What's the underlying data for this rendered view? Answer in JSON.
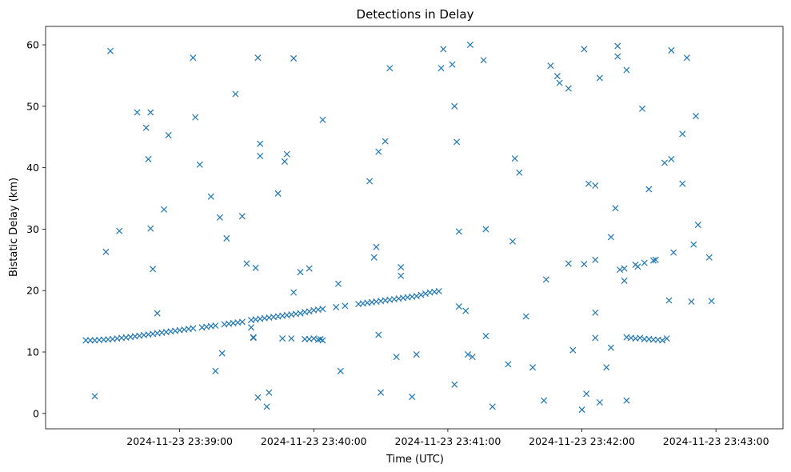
{
  "chart_data": {
    "type": "scatter",
    "title": "Detections in Delay",
    "xlabel": "Time (UTC)",
    "ylabel": "Bistatic Delay (km)",
    "marker": "x",
    "color": "#1f77b4",
    "grid": false,
    "legend": "none",
    "xlim": [
      "2024-11-23 23:38:00",
      "2024-11-23 23:43:30"
    ],
    "ylim": [
      -2.5,
      63
    ],
    "xticks": [
      "2024-11-23 23:39:00",
      "2024-11-23 23:40:00",
      "2024-11-23 23:41:00",
      "2024-11-23 23:42:00",
      "2024-11-23 23:43:00"
    ],
    "yticks": [
      0,
      10,
      20,
      30,
      40,
      50,
      60
    ],
    "x_unit": "seconds after 2024-11-23 23:38:00 UTC",
    "points": [
      [
        18,
        11.9
      ],
      [
        20,
        11.9
      ],
      [
        22,
        11.9
      ],
      [
        24,
        11.95
      ],
      [
        26,
        12.0
      ],
      [
        28,
        12.05
      ],
      [
        30,
        12.1
      ],
      [
        32,
        12.2
      ],
      [
        34,
        12.3
      ],
      [
        36,
        12.35
      ],
      [
        38,
        12.45
      ],
      [
        40,
        12.55
      ],
      [
        42,
        12.65
      ],
      [
        44,
        12.75
      ],
      [
        46,
        12.85
      ],
      [
        48,
        12.95
      ],
      [
        50,
        13.05
      ],
      [
        52,
        13.15
      ],
      [
        54,
        13.25
      ],
      [
        56,
        13.35
      ],
      [
        58,
        13.45
      ],
      [
        60,
        13.55
      ],
      [
        62,
        13.65
      ],
      [
        64,
        13.75
      ],
      [
        66,
        13.85
      ],
      [
        70,
        14.0
      ],
      [
        72,
        14.1
      ],
      [
        74,
        14.2
      ],
      [
        76,
        14.3
      ],
      [
        80,
        14.5
      ],
      [
        82,
        14.6
      ],
      [
        84,
        14.7
      ],
      [
        86,
        14.8
      ],
      [
        88,
        14.9
      ],
      [
        92,
        15.2
      ],
      [
        94,
        15.3
      ],
      [
        96,
        15.4
      ],
      [
        98,
        15.5
      ],
      [
        100,
        15.6
      ],
      [
        102,
        15.7
      ],
      [
        104,
        15.8
      ],
      [
        106,
        15.9
      ],
      [
        108,
        16.0
      ],
      [
        110,
        16.1
      ],
      [
        112,
        16.2
      ],
      [
        114,
        16.3
      ],
      [
        116,
        16.5
      ],
      [
        118,
        16.6
      ],
      [
        120,
        16.8
      ],
      [
        122,
        16.9
      ],
      [
        124,
        17.0
      ],
      [
        130,
        17.3
      ],
      [
        134,
        17.5
      ],
      [
        140,
        17.8
      ],
      [
        142,
        17.9
      ],
      [
        144,
        18.0
      ],
      [
        146,
        18.1
      ],
      [
        148,
        18.2
      ],
      [
        150,
        18.3
      ],
      [
        152,
        18.4
      ],
      [
        154,
        18.5
      ],
      [
        156,
        18.6
      ],
      [
        158,
        18.7
      ],
      [
        160,
        18.8
      ],
      [
        162,
        18.9
      ],
      [
        164,
        19.0
      ],
      [
        166,
        19.1
      ],
      [
        168,
        19.3
      ],
      [
        170,
        19.5
      ],
      [
        172,
        19.7
      ],
      [
        174,
        19.8
      ],
      [
        176,
        19.9
      ],
      [
        22,
        2.8
      ],
      [
        27,
        26.3
      ],
      [
        29,
        59.0
      ],
      [
        33,
        29.7
      ],
      [
        41,
        49.0
      ],
      [
        45,
        46.5
      ],
      [
        46,
        41.4
      ],
      [
        47,
        30.1
      ],
      [
        47,
        49.0
      ],
      [
        48,
        23.5
      ],
      [
        50,
        16.3
      ],
      [
        53,
        33.2
      ],
      [
        55,
        45.3
      ],
      [
        66,
        57.9
      ],
      [
        67,
        48.2
      ],
      [
        69,
        40.5
      ],
      [
        74,
        35.3
      ],
      [
        76,
        6.9
      ],
      [
        78,
        31.9
      ],
      [
        79,
        9.8
      ],
      [
        81,
        28.5
      ],
      [
        85,
        52.0
      ],
      [
        88,
        32.1
      ],
      [
        90,
        24.4
      ],
      [
        92,
        14.0
      ],
      [
        93,
        12.3
      ],
      [
        93,
        12.4
      ],
      [
        94,
        23.7
      ],
      [
        95,
        57.9
      ],
      [
        95,
        2.6
      ],
      [
        96,
        43.9
      ],
      [
        96,
        41.9
      ],
      [
        99,
        1.1
      ],
      [
        100,
        3.4
      ],
      [
        104,
        35.8
      ],
      [
        106,
        12.2
      ],
      [
        107,
        41.0
      ],
      [
        108,
        42.2
      ],
      [
        110,
        12.2
      ],
      [
        111,
        19.7
      ],
      [
        111,
        57.8
      ],
      [
        114,
        23.0
      ],
      [
        116,
        12.1
      ],
      [
        118,
        23.6
      ],
      [
        118,
        12.1
      ],
      [
        120,
        12.2
      ],
      [
        122,
        12.0
      ],
      [
        123,
        12.1
      ],
      [
        124,
        11.9
      ],
      [
        124,
        47.8
      ],
      [
        131,
        21.1
      ],
      [
        132,
        6.9
      ],
      [
        145,
        37.8
      ],
      [
        147,
        25.4
      ],
      [
        148,
        27.1
      ],
      [
        149,
        42.6
      ],
      [
        149,
        12.8
      ],
      [
        150,
        3.4
      ],
      [
        152,
        44.3
      ],
      [
        154,
        56.2
      ],
      [
        157,
        9.2
      ],
      [
        159,
        23.8
      ],
      [
        159,
        22.4
      ],
      [
        164,
        2.7
      ],
      [
        166,
        9.6
      ],
      [
        177,
        56.2
      ],
      [
        178,
        59.3
      ],
      [
        182,
        56.8
      ],
      [
        183,
        50.0
      ],
      [
        183,
        4.7
      ],
      [
        184,
        44.2
      ],
      [
        185,
        29.6
      ],
      [
        185,
        17.4
      ],
      [
        188,
        16.7
      ],
      [
        189,
        9.6
      ],
      [
        190,
        60.0
      ],
      [
        191,
        9.2
      ],
      [
        196,
        57.5
      ],
      [
        197,
        30.0
      ],
      [
        197,
        12.6
      ],
      [
        200,
        1.1
      ],
      [
        207,
        8.0
      ],
      [
        209,
        28.0
      ],
      [
        210,
        41.5
      ],
      [
        212,
        39.2
      ],
      [
        215,
        15.8
      ],
      [
        218,
        7.5
      ],
      [
        223,
        2.1
      ],
      [
        224,
        21.8
      ],
      [
        226,
        56.6
      ],
      [
        229,
        54.9
      ],
      [
        230,
        53.8
      ],
      [
        234,
        52.9
      ],
      [
        234,
        24.4
      ],
      [
        236,
        10.3
      ],
      [
        240,
        0.6
      ],
      [
        241,
        24.3
      ],
      [
        241,
        59.3
      ],
      [
        242,
        3.2
      ],
      [
        243,
        37.4
      ],
      [
        246,
        37.1
      ],
      [
        246,
        16.4
      ],
      [
        246,
        12.3
      ],
      [
        246,
        25.0
      ],
      [
        248,
        1.8
      ],
      [
        248,
        54.6
      ],
      [
        251,
        7.5
      ],
      [
        253,
        10.7
      ],
      [
        253,
        28.7
      ],
      [
        255,
        33.4
      ],
      [
        256,
        59.8
      ],
      [
        256,
        58.1
      ],
      [
        257,
        23.4
      ],
      [
        259,
        21.6
      ],
      [
        259,
        23.6
      ],
      [
        260,
        2.1
      ],
      [
        260,
        55.9
      ],
      [
        260,
        12.4
      ],
      [
        262,
        12.3
      ],
      [
        264,
        12.2
      ],
      [
        266,
        12.3
      ],
      [
        268,
        12.1
      ],
      [
        270,
        12.1
      ],
      [
        272,
        12.0
      ],
      [
        274,
        12.0
      ],
      [
        276,
        11.9
      ],
      [
        264,
        24.2
      ],
      [
        265,
        23.9
      ],
      [
        267,
        49.6
      ],
      [
        268,
        24.5
      ],
      [
        270,
        36.5
      ],
      [
        272,
        24.9
      ],
      [
        273,
        25.0
      ],
      [
        277,
        40.8
      ],
      [
        278,
        12.2
      ],
      [
        279,
        18.4
      ],
      [
        280,
        41.4
      ],
      [
        280,
        59.1
      ],
      [
        281,
        26.2
      ],
      [
        285,
        37.4
      ],
      [
        285,
        45.5
      ],
      [
        287,
        57.9
      ],
      [
        289,
        18.2
      ],
      [
        290,
        27.5
      ],
      [
        291,
        48.4
      ],
      [
        292,
        30.7
      ],
      [
        297,
        25.4
      ],
      [
        298,
        18.3
      ]
    ]
  }
}
